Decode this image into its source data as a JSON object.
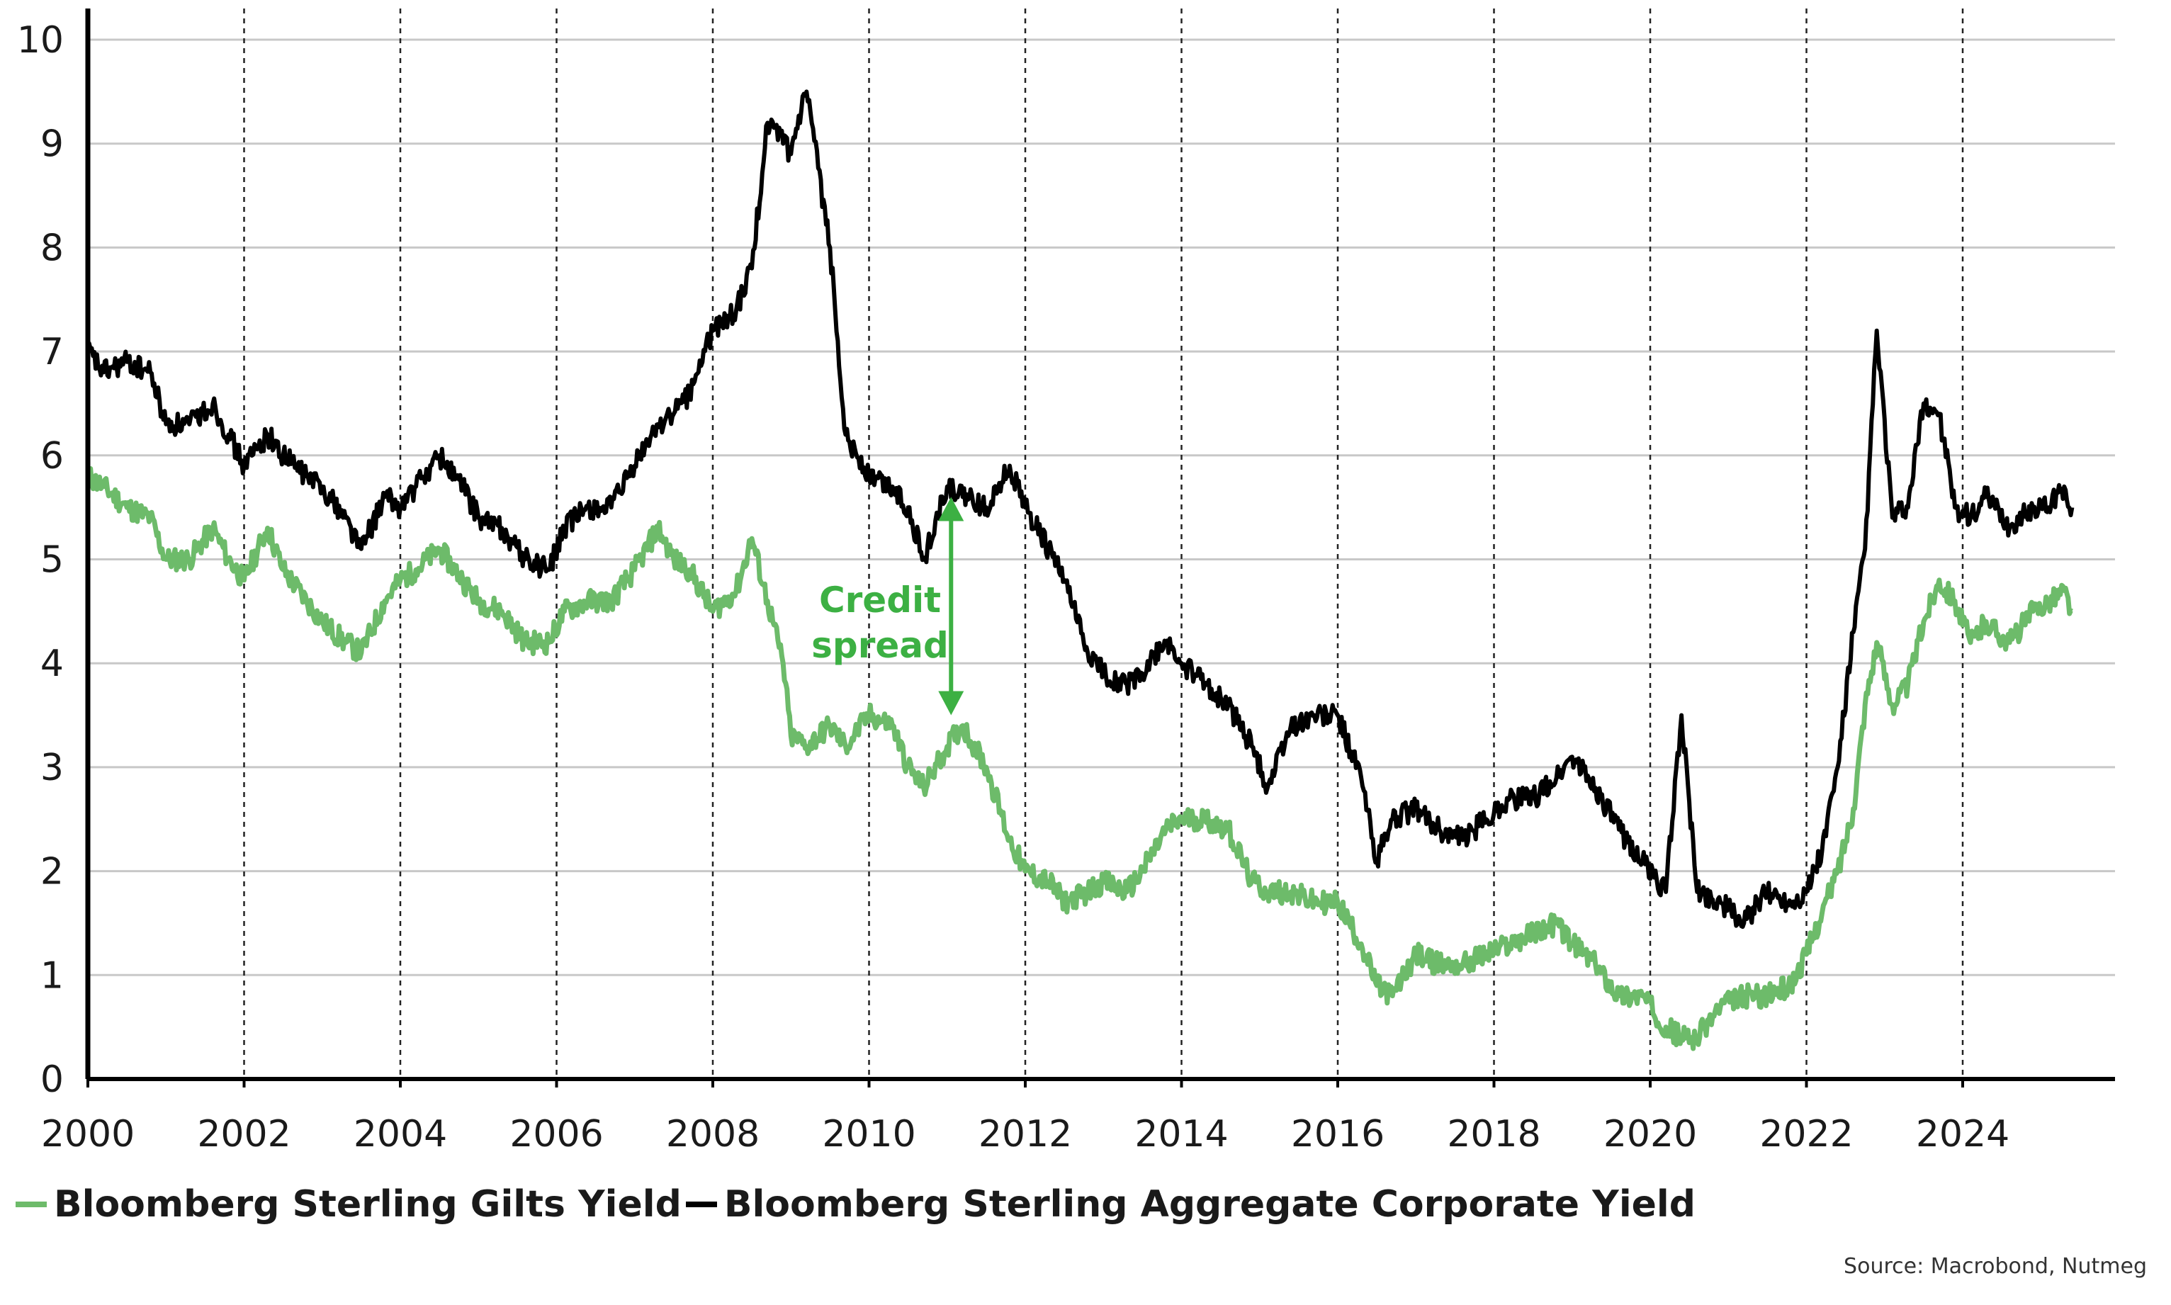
{
  "chart_data": {
    "type": "line",
    "title": "",
    "xlabel": "",
    "ylabel": "",
    "xlim": [
      2000,
      2025.95
    ],
    "ylim": [
      0,
      10.3
    ],
    "x_ticks": [
      "2000",
      "2002",
      "2004",
      "2006",
      "2008",
      "2010",
      "2012",
      "2014",
      "2016",
      "2018",
      "2020",
      "2022",
      "2024"
    ],
    "y_ticks": [
      "0",
      "1",
      "2",
      "3",
      "4",
      "5",
      "6",
      "7",
      "8",
      "9",
      "10"
    ],
    "grid": {
      "horizontal": "solid",
      "vertical": "dashed"
    },
    "legend_position": "bottom-left",
    "colors": {
      "gilts": "#6dbb6a",
      "corporate": "#000000",
      "annotation": "#3cb043"
    },
    "series": [
      {
        "name": "Bloomberg Sterling Gilts Yield",
        "x": [
          2000.0,
          2000.2,
          2000.5,
          2000.8,
          2001.0,
          2001.3,
          2001.6,
          2001.8,
          2002.0,
          2002.3,
          2002.5,
          2002.8,
          2003.0,
          2003.3,
          2003.5,
          2003.8,
          2004.0,
          2004.2,
          2004.5,
          2004.8,
          2005.0,
          2005.3,
          2005.6,
          2005.9,
          2006.1,
          2006.4,
          2006.7,
          2007.0,
          2007.3,
          2007.5,
          2007.7,
          2008.0,
          2008.3,
          2008.5,
          2008.7,
          2008.9,
          2009.0,
          2009.2,
          2009.5,
          2009.7,
          2010.0,
          2010.3,
          2010.5,
          2010.7,
          2011.0,
          2011.2,
          2011.5,
          2011.8,
          2012.0,
          2012.3,
          2012.5,
          2012.8,
          2013.0,
          2013.3,
          2013.5,
          2013.8,
          2014.0,
          2014.3,
          2014.6,
          2014.9,
          2015.1,
          2015.4,
          2015.7,
          2016.0,
          2016.3,
          2016.5,
          2016.7,
          2017.0,
          2017.3,
          2017.6,
          2017.9,
          2018.2,
          2018.5,
          2018.8,
          2019.0,
          2019.3,
          2019.6,
          2019.9,
          2020.2,
          2020.4,
          2020.6,
          2020.9,
          2021.2,
          2021.5,
          2021.8,
          2022.0,
          2022.2,
          2022.4,
          2022.6,
          2022.75,
          2022.9,
          2023.1,
          2023.3,
          2023.5,
          2023.7,
          2023.9,
          2024.1,
          2024.3,
          2024.6,
          2024.9,
          2025.1,
          2025.3,
          2025.4
        ],
        "values": [
          5.8,
          5.7,
          5.5,
          5.4,
          5.0,
          5.0,
          5.3,
          5.0,
          4.8,
          5.3,
          4.9,
          4.6,
          4.4,
          4.2,
          4.1,
          4.6,
          4.8,
          4.9,
          5.1,
          4.8,
          4.6,
          4.5,
          4.2,
          4.2,
          4.5,
          4.6,
          4.6,
          4.9,
          5.3,
          5.0,
          4.9,
          4.5,
          4.7,
          5.2,
          4.6,
          4.0,
          3.3,
          3.2,
          3.4,
          3.2,
          3.5,
          3.4,
          3.0,
          2.8,
          3.2,
          3.4,
          3.0,
          2.3,
          2.0,
          1.9,
          1.7,
          1.8,
          1.9,
          1.8,
          2.0,
          2.4,
          2.5,
          2.5,
          2.4,
          1.9,
          1.8,
          1.8,
          1.7,
          1.7,
          1.3,
          0.9,
          0.8,
          1.2,
          1.1,
          1.1,
          1.2,
          1.3,
          1.4,
          1.5,
          1.3,
          1.1,
          0.8,
          0.8,
          0.5,
          0.4,
          0.4,
          0.7,
          0.8,
          0.8,
          0.9,
          1.2,
          1.6,
          2.0,
          2.6,
          3.6,
          4.2,
          3.6,
          3.8,
          4.4,
          4.8,
          4.6,
          4.2,
          4.4,
          4.2,
          4.5,
          4.6,
          4.7,
          4.5
        ]
      },
      {
        "name": "Bloomberg Sterling Aggregate Corporate Yield",
        "x": [
          2000.0,
          2000.2,
          2000.5,
          2000.8,
          2001.0,
          2001.3,
          2001.6,
          2001.8,
          2002.0,
          2002.3,
          2002.5,
          2002.8,
          2003.0,
          2003.3,
          2003.5,
          2003.8,
          2004.0,
          2004.2,
          2004.5,
          2004.8,
          2005.0,
          2005.3,
          2005.6,
          2005.9,
          2006.1,
          2006.4,
          2006.7,
          2007.0,
          2007.3,
          2007.5,
          2007.7,
          2008.0,
          2008.3,
          2008.5,
          2008.7,
          2008.9,
          2009.0,
          2009.2,
          2009.5,
          2009.7,
          2010.0,
          2010.3,
          2010.5,
          2010.7,
          2011.0,
          2011.2,
          2011.5,
          2011.8,
          2012.0,
          2012.3,
          2012.5,
          2012.8,
          2013.0,
          2013.3,
          2013.5,
          2013.8,
          2014.0,
          2014.3,
          2014.6,
          2014.9,
          2015.1,
          2015.4,
          2015.7,
          2016.0,
          2016.3,
          2016.5,
          2016.7,
          2017.0,
          2017.3,
          2017.6,
          2017.9,
          2018.2,
          2018.5,
          2018.8,
          2019.0,
          2019.3,
          2019.6,
          2019.9,
          2020.2,
          2020.4,
          2020.6,
          2020.9,
          2021.2,
          2021.5,
          2021.8,
          2022.0,
          2022.2,
          2022.4,
          2022.6,
          2022.75,
          2022.9,
          2023.1,
          2023.3,
          2023.5,
          2023.7,
          2023.9,
          2024.1,
          2024.3,
          2024.6,
          2024.9,
          2025.1,
          2025.3,
          2025.4
        ],
        "values": [
          7.0,
          6.8,
          6.9,
          6.8,
          6.3,
          6.3,
          6.5,
          6.2,
          5.9,
          6.2,
          6.0,
          5.8,
          5.7,
          5.4,
          5.1,
          5.6,
          5.5,
          5.7,
          6.0,
          5.7,
          5.4,
          5.3,
          5.0,
          4.9,
          5.3,
          5.5,
          5.5,
          5.9,
          6.3,
          6.4,
          6.6,
          7.2,
          7.4,
          7.8,
          9.2,
          9.0,
          8.9,
          9.5,
          8.0,
          6.2,
          5.8,
          5.7,
          5.5,
          5.0,
          5.7,
          5.6,
          5.5,
          5.9,
          5.5,
          5.1,
          4.8,
          4.1,
          3.9,
          3.8,
          3.9,
          4.2,
          4.0,
          3.8,
          3.6,
          3.2,
          2.8,
          3.4,
          3.5,
          3.5,
          2.9,
          2.1,
          2.5,
          2.6,
          2.4,
          2.3,
          2.5,
          2.7,
          2.7,
          2.9,
          3.1,
          2.8,
          2.4,
          2.1,
          1.8,
          3.5,
          1.8,
          1.7,
          1.5,
          1.8,
          1.7,
          1.8,
          2.2,
          3.0,
          4.3,
          5.1,
          7.2,
          5.4,
          5.5,
          6.5,
          6.4,
          5.5,
          5.4,
          5.6,
          5.3,
          5.5,
          5.5,
          5.7,
          5.5
        ]
      }
    ],
    "annotations": [
      {
        "text": "Credit\nspread",
        "x": 2011.05,
        "y_from": 3.5,
        "y_to": 5.6
      }
    ],
    "source": "Source: Macrobond, Nutmeg"
  }
}
